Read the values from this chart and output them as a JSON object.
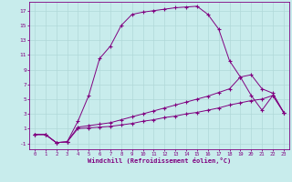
{
  "xlabel": "Windchill (Refroidissement éolien,°C)",
  "background_color": "#c8ecec",
  "line_color": "#800080",
  "grid_color": "#b0d8d8",
  "xlim": [
    -0.5,
    23.5
  ],
  "ylim": [
    -1.8,
    18.2
  ],
  "xticks": [
    0,
    1,
    2,
    3,
    4,
    5,
    6,
    7,
    8,
    9,
    10,
    11,
    12,
    13,
    14,
    15,
    16,
    17,
    18,
    19,
    20,
    21,
    22,
    23
  ],
  "yticks": [
    -1,
    1,
    3,
    5,
    7,
    9,
    11,
    13,
    15,
    17
  ],
  "line1_x": [
    0,
    1,
    2,
    3,
    4,
    5,
    6,
    7,
    8,
    9,
    10,
    11,
    12,
    13,
    14,
    15,
    16,
    17,
    18,
    19,
    20,
    21,
    22,
    23
  ],
  "line1_y": [
    0.2,
    0.2,
    -0.9,
    -0.8,
    2.0,
    5.5,
    10.5,
    12.2,
    15.0,
    16.5,
    16.8,
    17.0,
    17.2,
    17.4,
    17.5,
    17.6,
    16.5,
    14.5,
    10.2,
    8.0,
    5.5,
    3.5,
    5.5,
    3.2
  ],
  "line2_x": [
    0,
    1,
    2,
    3,
    4,
    5,
    6,
    7,
    8,
    9,
    10,
    11,
    12,
    13,
    14,
    15,
    16,
    17,
    18,
    19,
    20,
    21,
    22,
    23
  ],
  "line2_y": [
    0.2,
    0.2,
    -0.9,
    -0.8,
    1.2,
    1.4,
    1.6,
    1.8,
    2.2,
    2.6,
    3.0,
    3.4,
    3.8,
    4.2,
    4.6,
    5.0,
    5.4,
    5.9,
    6.4,
    8.0,
    8.3,
    6.4,
    5.8,
    3.2
  ],
  "line3_x": [
    0,
    1,
    2,
    3,
    4,
    5,
    6,
    7,
    8,
    9,
    10,
    11,
    12,
    13,
    14,
    15,
    16,
    17,
    18,
    19,
    20,
    21,
    22,
    23
  ],
  "line3_y": [
    0.2,
    0.2,
    -0.9,
    -0.8,
    1.0,
    1.1,
    1.2,
    1.3,
    1.5,
    1.7,
    2.0,
    2.2,
    2.5,
    2.7,
    3.0,
    3.2,
    3.5,
    3.8,
    4.2,
    4.5,
    4.8,
    5.0,
    5.5,
    3.2
  ]
}
